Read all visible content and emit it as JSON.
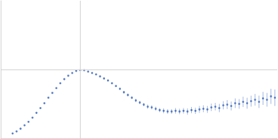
{
  "chart_data": {
    "type": "scatter",
    "color": "#3a65b8",
    "marker": "circle",
    "grid": true,
    "tick_labels": false,
    "xlim": [
      0,
      3.48
    ],
    "xticks": [
      1
    ],
    "ylim": [
      0,
      2
    ],
    "yticks": [
      1
    ],
    "x": [
      0.15,
      0.2,
      0.25,
      0.3,
      0.35,
      0.4,
      0.45,
      0.5,
      0.55,
      0.6,
      0.65,
      0.7,
      0.75,
      0.8,
      0.85,
      0.9,
      0.95,
      1.0,
      1.05,
      1.1,
      1.15,
      1.2,
      1.25,
      1.3,
      1.35,
      1.4,
      1.45,
      1.5,
      1.55,
      1.6,
      1.65,
      1.7,
      1.75,
      1.8,
      1.85,
      1.9,
      1.95,
      2.0,
      2.05,
      2.1,
      2.15,
      2.2,
      2.25,
      2.3,
      2.35,
      2.4,
      2.45,
      2.5,
      2.55,
      2.6,
      2.65,
      2.7,
      2.75,
      2.8,
      2.85,
      2.9,
      2.95,
      3.0,
      3.05,
      3.1,
      3.15,
      3.2,
      3.25,
      3.3,
      3.35,
      3.4,
      3.45
    ],
    "values": [
      0.07,
      0.1,
      0.14,
      0.19,
      0.24,
      0.3,
      0.37,
      0.44,
      0.51,
      0.59,
      0.66,
      0.73,
      0.8,
      0.86,
      0.91,
      0.95,
      0.98,
      0.99,
      0.99,
      0.97,
      0.95,
      0.93,
      0.9,
      0.87,
      0.84,
      0.8,
      0.76,
      0.72,
      0.67,
      0.63,
      0.59,
      0.55,
      0.52,
      0.49,
      0.46,
      0.45,
      0.43,
      0.41,
      0.4,
      0.39,
      0.39,
      0.4,
      0.39,
      0.4,
      0.39,
      0.41,
      0.4,
      0.42,
      0.43,
      0.42,
      0.45,
      0.46,
      0.44,
      0.48,
      0.49,
      0.47,
      0.51,
      0.5,
      0.53,
      0.51,
      0.54,
      0.56,
      0.53,
      0.58,
      0.56,
      0.61,
      0.59
    ],
    "error": [
      0.005,
      0.005,
      0.005,
      0.005,
      0.005,
      0.005,
      0.005,
      0.005,
      0.005,
      0.005,
      0.005,
      0.005,
      0.005,
      0.005,
      0.005,
      0.005,
      0.005,
      0.005,
      0.005,
      0.005,
      0.008,
      0.008,
      0.01,
      0.01,
      0.01,
      0.012,
      0.012,
      0.015,
      0.02,
      0.02,
      0.02,
      0.025,
      0.025,
      0.025,
      0.03,
      0.03,
      0.03,
      0.03,
      0.035,
      0.035,
      0.035,
      0.04,
      0.04,
      0.04,
      0.045,
      0.045,
      0.045,
      0.05,
      0.05,
      0.05,
      0.055,
      0.055,
      0.06,
      0.06,
      0.065,
      0.065,
      0.07,
      0.07,
      0.075,
      0.08,
      0.08,
      0.085,
      0.09,
      0.095,
      0.1,
      0.11,
      0.12
    ]
  }
}
